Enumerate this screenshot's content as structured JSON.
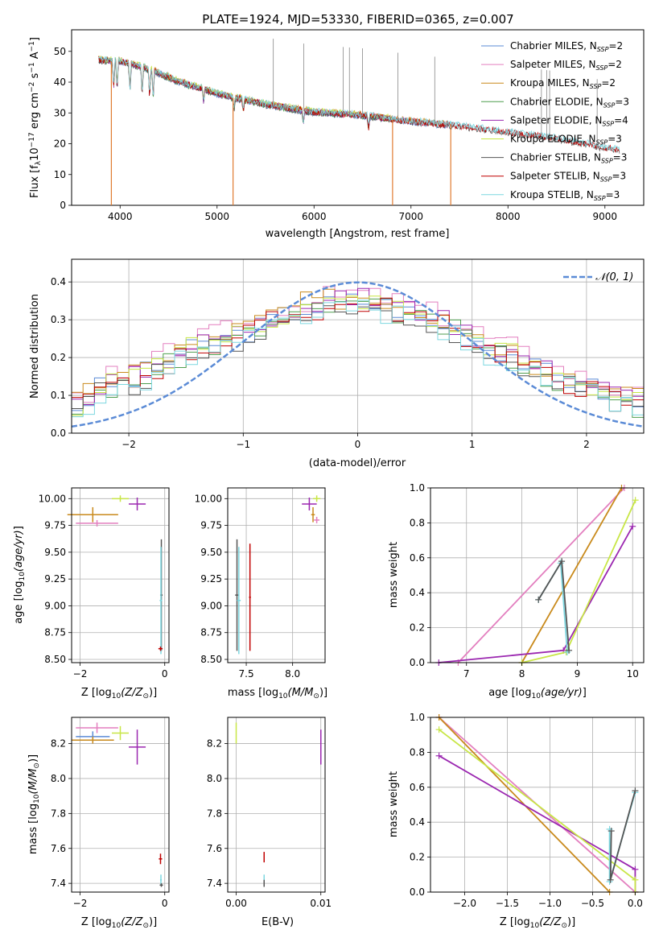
{
  "figure": {
    "title": "PLATE=1924, MJD=53330, FIBERID=0365, z=0.007"
  },
  "colors": {
    "Chabrier MILES": "#5b8bd6",
    "Salpeter MILES": "#e37fbf",
    "Kroupa MILES": "#c98a1c",
    "Chabrier ELODIE": "#4f9e4f",
    "Salpeter ELODIE": "#9b27b0",
    "Kroupa ELODIE": "#c8e646",
    "Chabrier STELIB": "#555555",
    "Salpeter STELIB": "#c00000",
    "Kroupa STELIB": "#7dd7e0",
    "normal_curve": "#5b8bd6",
    "orange": "#e07b30"
  },
  "chart_data": [
    {
      "id": "spectrum",
      "type": "line",
      "xlabel": "wavelength [Angstrom, rest frame]",
      "ylabel": "Flux [f_λ 10^-17 erg cm^-2 s^-1 A^-1]",
      "xlim": [
        3500,
        9400
      ],
      "ylim": [
        0,
        57
      ],
      "xticks": [
        4000,
        5000,
        6000,
        7000,
        8000,
        9000
      ],
      "yticks": [
        0,
        10,
        20,
        30,
        40,
        50
      ],
      "legend_position": "top-right",
      "legend": [
        {
          "label": "Chabrier MILES, N",
          "sub": "SSP",
          "suffix": "=2",
          "series": "Chabrier MILES"
        },
        {
          "label": "Salpeter MILES, N",
          "sub": "SSP",
          "suffix": "=2",
          "series": "Salpeter MILES"
        },
        {
          "label": "Kroupa MILES, N",
          "sub": "SSP",
          "suffix": "=2",
          "series": "Kroupa MILES"
        },
        {
          "label": "Chabrier ELODIE, N",
          "sub": "SSP",
          "suffix": "=3",
          "series": "Chabrier ELODIE"
        },
        {
          "label": "Salpeter ELODIE, N",
          "sub": "SSP",
          "suffix": "=4",
          "series": "Salpeter ELODIE"
        },
        {
          "label": "Kroupa ELODIE, N",
          "sub": "SSP",
          "suffix": "=3",
          "series": "Kroupa ELODIE"
        },
        {
          "label": "Chabrier STELIB, N",
          "sub": "SSP",
          "suffix": "=3",
          "series": "Chabrier STELIB"
        },
        {
          "label": "Salpeter STELIB, N",
          "sub": "SSP",
          "suffix": "=3",
          "series": "Salpeter STELIB"
        },
        {
          "label": "Kroupa STELIB, N",
          "sub": "SSP",
          "suffix": "=3",
          "series": "Kroupa STELIB"
        }
      ],
      "continuum": {
        "x": [
          3780,
          4000,
          4300,
          4600,
          5000,
          5500,
          6000,
          6500,
          7000,
          7500,
          8000,
          8500,
          9000,
          9200
        ],
        "y": [
          47,
          46.5,
          44,
          40,
          36,
          32.5,
          30,
          29,
          27,
          25.5,
          23.5,
          21.5,
          18.5,
          17.5
        ]
      },
      "absorption_lines": [
        3934,
        3969,
        4102,
        4227,
        4304,
        4341,
        4861,
        5175,
        5270,
        5890,
        6563
      ],
      "dropouts": [
        {
          "x": 3910,
          "series": "Kroupa MILES"
        },
        {
          "x": 5165,
          "series": "Kroupa MILES"
        },
        {
          "x": 6810,
          "series": "Kroupa MILES"
        },
        {
          "x": 7410,
          "series": "Kroupa MILES"
        }
      ],
      "spikes": [
        5580,
        5895,
        6300,
        6365,
        6500,
        6865,
        7245,
        8345,
        8400,
        8430,
        8920
      ]
    },
    {
      "id": "residuals",
      "type": "line",
      "xlabel": "(data-model)/error",
      "ylabel": "Normed distribution",
      "xlim": [
        -2.5,
        2.5
      ],
      "ylim": [
        0,
        0.46
      ],
      "xticks": [
        -2,
        -1,
        0,
        1,
        2
      ],
      "yticks": [
        0.0,
        0.1,
        0.2,
        0.3,
        0.4
      ],
      "legend_position": "top-right",
      "legend": [
        {
          "label": "𝒩(0, 1)",
          "series": "normal_curve"
        }
      ],
      "normal": {
        "mean": 0,
        "sigma": 1
      },
      "histogram_edges_step": 0.1,
      "histogram_base": [
        0.07,
        0.09,
        0.12,
        0.13,
        0.13,
        0.14,
        0.16,
        0.17,
        0.19,
        0.21,
        0.22,
        0.23,
        0.24,
        0.25,
        0.26,
        0.27,
        0.28,
        0.3,
        0.31,
        0.32,
        0.33,
        0.33,
        0.34,
        0.34,
        0.35,
        0.35,
        0.34,
        0.34,
        0.33,
        0.32,
        0.31,
        0.3,
        0.29,
        0.28,
        0.26,
        0.25,
        0.23,
        0.22,
        0.21,
        0.19,
        0.17,
        0.16,
        0.15,
        0.14,
        0.13,
        0.12,
        0.11,
        0.1,
        0.09,
        0.08
      ],
      "histogram_series": [
        {
          "series": "Chabrier MILES",
          "offset": 0.0
        },
        {
          "series": "Salpeter MILES",
          "offset": 0.02
        },
        {
          "series": "Kroupa MILES",
          "offset": 0.015
        },
        {
          "series": "Chabrier ELODIE",
          "offset": -0.01
        },
        {
          "series": "Salpeter ELODIE",
          "offset": 0.01
        },
        {
          "series": "Kroupa ELODIE",
          "offset": 0.005
        },
        {
          "series": "Chabrier STELIB",
          "offset": -0.015
        },
        {
          "series": "Salpeter STELIB",
          "offset": -0.005
        },
        {
          "series": "Kroupa STELIB",
          "offset": -0.02
        }
      ]
    },
    {
      "id": "age_vs_Z",
      "type": "scatter",
      "xlabel": "Z [log10(Z/Z⊙)]",
      "ylabel": "age  [log10(age/yr)]",
      "xlim": [
        -2.2,
        0.1
      ],
      "ylim": [
        8.47,
        10.1
      ],
      "xticks": [
        -2,
        0
      ],
      "yticks": [
        8.5,
        8.75,
        9.0,
        9.25,
        9.5,
        9.75,
        10.0
      ],
      "points": [
        {
          "series": "Kroupa MILES",
          "x": -1.7,
          "y": 9.85,
          "xerr": 0.6,
          "yerr": 0.07
        },
        {
          "series": "Salpeter MILES",
          "x": -1.6,
          "y": 9.77,
          "xerr": 0.5,
          "yerr": 0.03
        },
        {
          "series": "Kroupa ELODIE",
          "x": -1.05,
          "y": 10.0,
          "xerr": 0.2,
          "yerr": 0.03
        },
        {
          "series": "Salpeter ELODIE",
          "x": -0.65,
          "y": 9.95,
          "xerr": 0.2,
          "yerr": 0.06
        },
        {
          "series": "Chabrier STELIB",
          "x": -0.08,
          "y": 9.1,
          "xerr": 0.03,
          "yerr": 0.52
        },
        {
          "series": "Kroupa STELIB",
          "x": -0.09,
          "y": 9.05,
          "xerr": 0.03,
          "yerr": 0.5
        },
        {
          "series": "Salpeter STELIB",
          "x": -0.1,
          "y": 8.6,
          "xerr": 0.05,
          "yerr": 0.02
        }
      ]
    },
    {
      "id": "age_vs_mass",
      "type": "scatter",
      "xlabel": "mass [log10(M/M⊙)]",
      "ylabel": "",
      "xlim": [
        7.3,
        8.35
      ],
      "ylim": [
        8.47,
        10.1
      ],
      "xticks": [
        7.5,
        8.0
      ],
      "yticks": [
        8.5,
        8.75,
        9.0,
        9.25,
        9.5,
        9.75,
        10.0
      ],
      "points": [
        {
          "series": "Kroupa ELODIE",
          "x": 8.26,
          "y": 10.0,
          "xerr": 0.04,
          "yerr": 0.03
        },
        {
          "series": "Salpeter ELODIE",
          "x": 8.18,
          "y": 9.95,
          "xerr": 0.08,
          "yerr": 0.06
        },
        {
          "series": "Kroupa MILES",
          "x": 8.22,
          "y": 9.85,
          "xerr": 0.02,
          "yerr": 0.07
        },
        {
          "series": "Salpeter MILES",
          "x": 8.26,
          "y": 9.8,
          "xerr": 0.03,
          "yerr": 0.03
        },
        {
          "series": "Chabrier STELIB",
          "x": 7.4,
          "y": 9.1,
          "xerr": 0.02,
          "yerr": 0.52
        },
        {
          "series": "Kroupa STELIB",
          "x": 7.42,
          "y": 9.05,
          "xerr": 0.02,
          "yerr": 0.5
        },
        {
          "series": "Salpeter STELIB",
          "x": 7.54,
          "y": 9.08,
          "xerr": 0.01,
          "yerr": 0.5
        }
      ]
    },
    {
      "id": "weight_vs_age",
      "type": "line",
      "xlabel": "age  [log10(age/yr)]",
      "ylabel": "mass weight",
      "xlim": [
        6.35,
        10.2
      ],
      "ylim": [
        0,
        1.0
      ],
      "xticks": [
        7,
        8,
        9,
        10
      ],
      "yticks": [
        0.0,
        0.2,
        0.4,
        0.6,
        0.8,
        1.0
      ],
      "series": [
        {
          "name": "Salpeter MILES",
          "x": [
            6.85,
            9.85
          ],
          "y": [
            0.0,
            1.0
          ]
        },
        {
          "name": "Kroupa MILES",
          "x": [
            8.0,
            9.8
          ],
          "y": [
            0.0,
            1.0
          ]
        },
        {
          "name": "Salpeter ELODIE",
          "x": [
            6.5,
            8.75,
            10.0
          ],
          "y": [
            0.0,
            0.07,
            0.78
          ]
        },
        {
          "name": "Kroupa ELODIE",
          "x": [
            8.0,
            8.8,
            10.05
          ],
          "y": [
            0.0,
            0.06,
            0.93
          ]
        },
        {
          "name": "Kroupa STELIB",
          "x": [
            8.3,
            8.7,
            8.82
          ],
          "y": [
            0.36,
            0.57,
            0.06
          ]
        },
        {
          "name": "Chabrier STELIB",
          "x": [
            8.3,
            8.72,
            8.85
          ],
          "y": [
            0.36,
            0.58,
            0.07
          ]
        }
      ]
    },
    {
      "id": "mass_vs_Z",
      "type": "scatter",
      "xlabel": "Z [log10(Z/Z⊙)]",
      "ylabel": "mass [log10(M/M⊙)]",
      "xlim": [
        -2.2,
        0.1
      ],
      "ylim": [
        7.35,
        8.35
      ],
      "xticks": [
        -2,
        0
      ],
      "yticks": [
        7.4,
        7.6,
        7.8,
        8.0,
        8.2
      ],
      "points": [
        {
          "series": "Salpeter MILES",
          "x": -1.6,
          "y": 8.29,
          "xerr": 0.5,
          "yerr": 0.03
        },
        {
          "series": "Chabrier MILES",
          "x": -1.7,
          "y": 8.24,
          "xerr": 0.4,
          "yerr": 0.03
        },
        {
          "series": "Kroupa MILES",
          "x": -1.7,
          "y": 8.22,
          "xerr": 0.5,
          "yerr": 0.02
        },
        {
          "series": "Kroupa ELODIE",
          "x": -1.05,
          "y": 8.26,
          "xerr": 0.2,
          "yerr": 0.04
        },
        {
          "series": "Salpeter ELODIE",
          "x": -0.65,
          "y": 8.18,
          "xerr": 0.2,
          "yerr": 0.1
        },
        {
          "series": "Salpeter STELIB",
          "x": -0.1,
          "y": 7.54,
          "xerr": 0.04,
          "yerr": 0.03
        },
        {
          "series": "Kroupa STELIB",
          "x": -0.09,
          "y": 7.42,
          "xerr": 0.02,
          "yerr": 0.03
        },
        {
          "series": "Chabrier STELIB",
          "x": -0.08,
          "y": 7.39,
          "xerr": 0.04,
          "yerr": 0.01
        }
      ]
    },
    {
      "id": "mass_vs_ebv",
      "type": "scatter",
      "xlabel": "E(B-V)",
      "ylabel": "",
      "xlim": [
        -0.001,
        0.0105
      ],
      "ylim": [
        7.35,
        8.35
      ],
      "xticks": [
        0.0,
        0.01
      ],
      "yticks": [
        7.4,
        7.6,
        7.8,
        8.0,
        8.2
      ],
      "points": [
        {
          "series": "Kroupa ELODIE",
          "x": 0.0,
          "y": 8.26,
          "xerr": 0.0,
          "yerr": 0.06
        },
        {
          "series": "Salpeter ELODIE",
          "x": 0.01,
          "y": 8.18,
          "xerr": 0.0,
          "yerr": 0.1
        },
        {
          "series": "Salpeter STELIB",
          "x": 0.0033,
          "y": 7.55,
          "xerr": 0.0,
          "yerr": 0.03
        },
        {
          "series": "Kroupa STELIB",
          "x": 0.0033,
          "y": 7.42,
          "xerr": 0.0,
          "yerr": 0.03
        },
        {
          "series": "Chabrier STELIB",
          "x": 0.0033,
          "y": 7.4,
          "xerr": 0.0,
          "yerr": 0.02
        }
      ]
    },
    {
      "id": "weight_vs_Z",
      "type": "line",
      "xlabel": "Z [log10(Z/Z⊙)]",
      "ylabel": "mass weight",
      "xlim": [
        -2.4,
        0.1
      ],
      "ylim": [
        0,
        1.0
      ],
      "xticks": [
        -2.0,
        -1.5,
        -1.0,
        -0.5,
        0.0
      ],
      "yticks": [
        0.0,
        0.2,
        0.4,
        0.6,
        0.8,
        1.0
      ],
      "series": [
        {
          "name": "Salpeter MILES",
          "x": [
            -2.3,
            0.0
          ],
          "y": [
            1.0,
            0.0
          ]
        },
        {
          "name": "Kroupa MILES",
          "x": [
            -2.3,
            -0.3
          ],
          "y": [
            1.0,
            0.0
          ]
        },
        {
          "name": "Salpeter ELODIE",
          "x": [
            -2.3,
            0.0,
            0.0
          ],
          "y": [
            0.78,
            0.13,
            0.0
          ]
        },
        {
          "name": "Kroupa ELODIE",
          "x": [
            -2.3,
            0.0,
            0.0
          ],
          "y": [
            0.93,
            0.07,
            0.0
          ]
        },
        {
          "name": "Kroupa STELIB",
          "x": [
            -0.3,
            -0.3,
            0.0
          ],
          "y": [
            0.36,
            0.06,
            0.57
          ]
        },
        {
          "name": "Chabrier STELIB",
          "x": [
            -0.28,
            -0.29,
            0.0
          ],
          "y": [
            0.35,
            0.07,
            0.58
          ]
        }
      ]
    }
  ],
  "axes": {
    "spectrum": {
      "xlabel": "wavelength [Angstrom, rest frame]"
    },
    "residuals": {
      "xlabel": "(data-model)/error",
      "ylabel": "Normed distribution"
    },
    "age_vs_Z": {
      "xlabel_text": "Z [log",
      "xlabel_sub": "10",
      "xlabel_rest": "(Z/Z",
      "xlabel_odot": "⊙",
      "xlabel_close": ")]"
    },
    "age_ylabel_text": "age  [log",
    "mass_xlabel_text": "mass [log",
    "ebv_xlabel": "E(B-V)",
    "weight_ylabel": "mass weight",
    "weight_age_xlabel": "age  [log",
    "mass_ylabel_text": "mass [log",
    "flux_ylabel_text": "Flux [f"
  }
}
